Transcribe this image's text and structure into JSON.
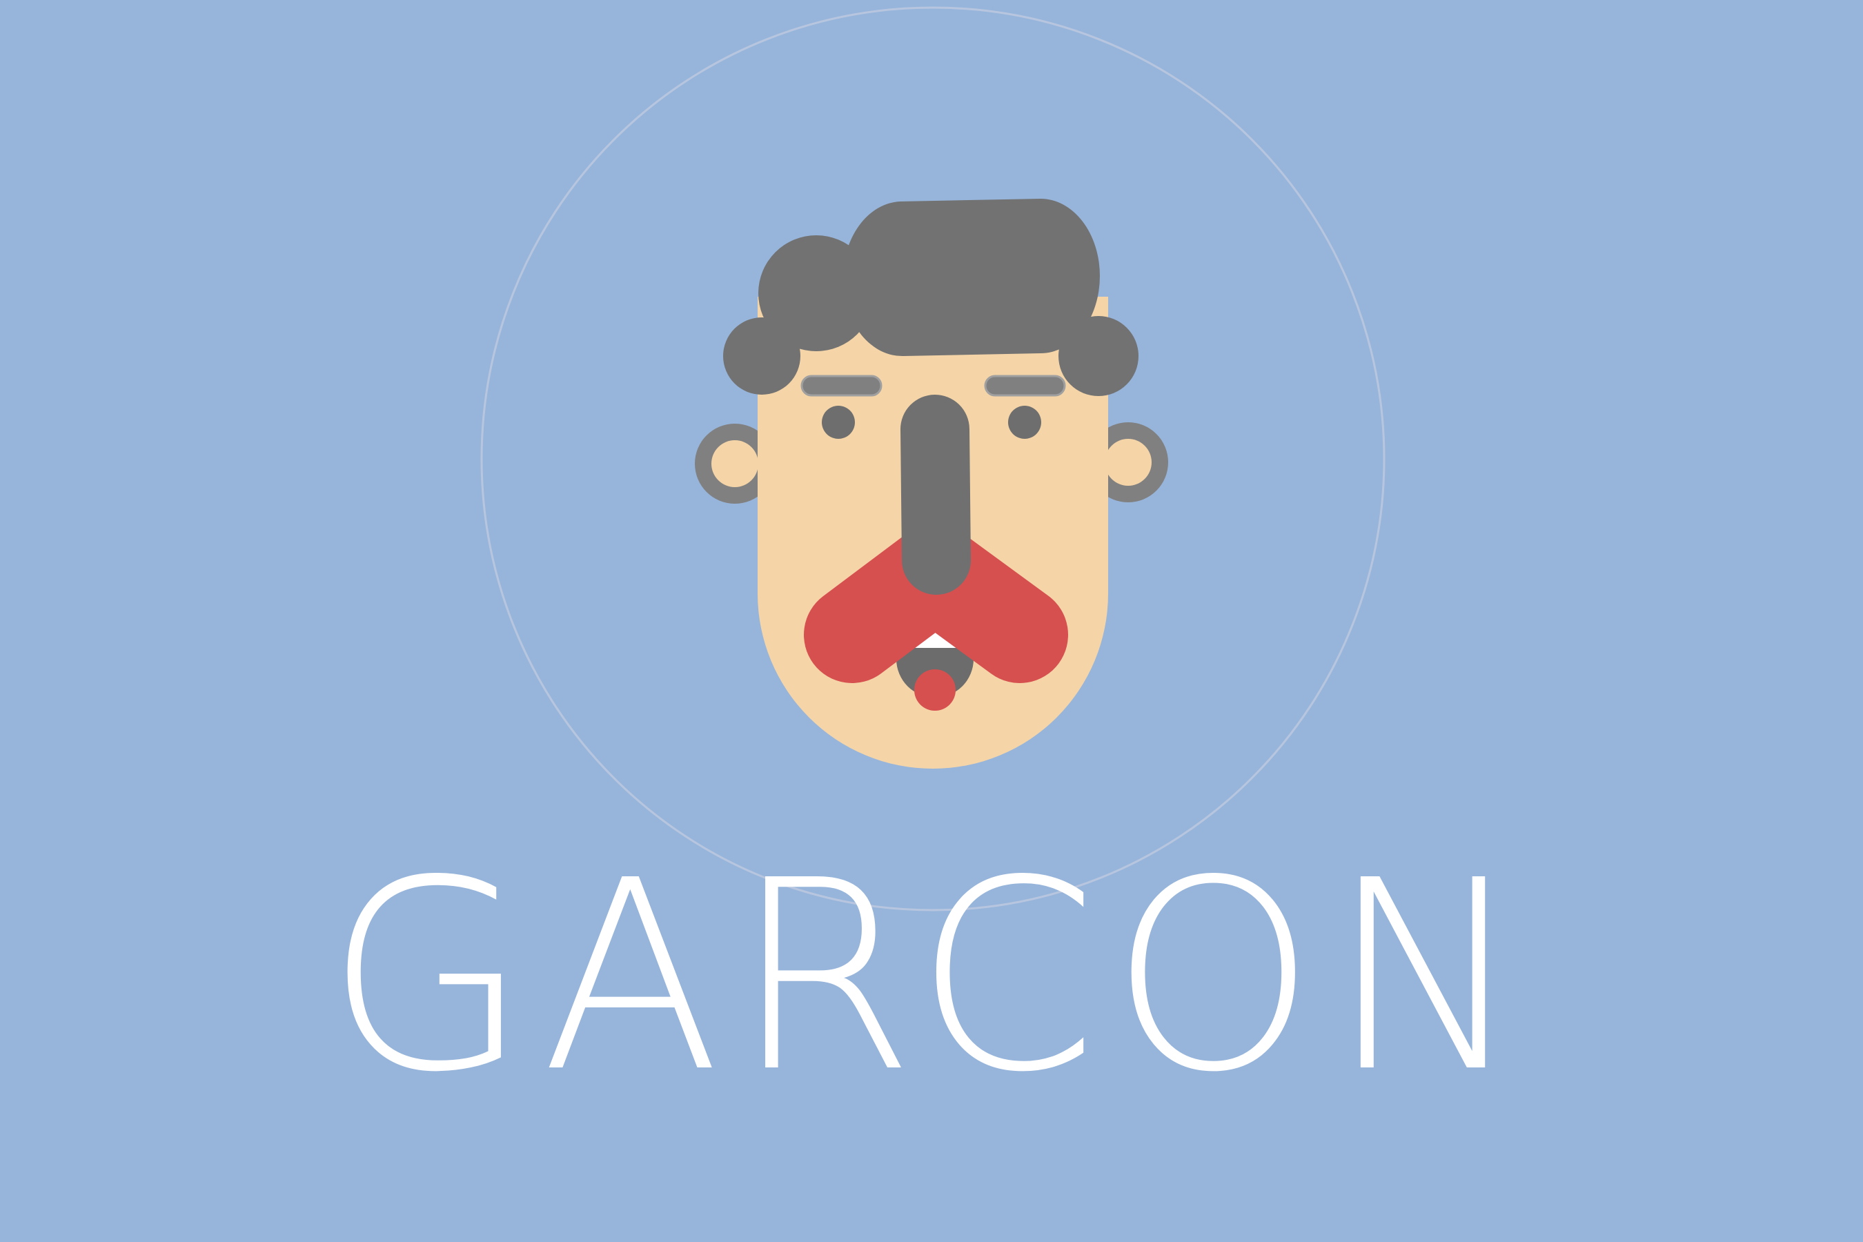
{
  "logo": {
    "title": "GARCON"
  },
  "colors": {
    "background": "#97b5db",
    "faint_circle": "#b7c6de",
    "skin": "#f5d5a7",
    "hair": "#727272",
    "eyebrow": "#808080",
    "eye": "#6e6e6e",
    "nose": "#707070",
    "mustache": "#d65050",
    "mouth": "#6c6c6c",
    "teeth": "#ffffff",
    "tongue": "#d65050",
    "ear_ring": "#808080",
    "title": "#ffffff"
  },
  "icons": {
    "mascot": "waiter-face-icon"
  }
}
